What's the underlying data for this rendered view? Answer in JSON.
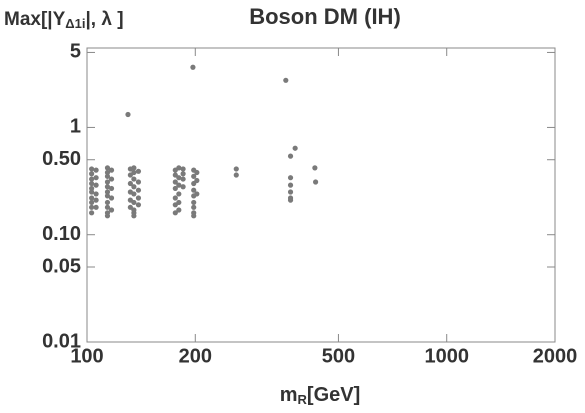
{
  "chart_data": {
    "type": "scatter",
    "title": "Boson DM (IH)",
    "x_label": [
      "m",
      "R",
      "[GeV]"
    ],
    "y_label": [
      "Max[|Y",
      "Δ1i",
      "|, λ ]"
    ],
    "xscale": "log",
    "yscale": "log",
    "xlim": [
      100,
      2000
    ],
    "ylim": [
      0.01,
      5.5
    ],
    "xticks": [
      100,
      200,
      500,
      1000,
      2000
    ],
    "yticks": [
      0.01,
      0.05,
      {
        "value": 0.1,
        "label": "0.10"
      },
      {
        "value": 0.5,
        "label": "0.50"
      },
      1,
      5
    ],
    "series": [
      {
        "color": "#7a7a7a",
        "x": [
          103,
          103,
          103,
          103,
          103,
          103,
          103,
          103,
          103,
          103,
          106,
          106,
          106,
          106,
          106,
          106,
          114,
          114,
          114,
          114,
          114,
          114,
          114,
          114,
          114,
          114,
          114,
          117,
          117,
          117,
          117,
          117,
          132,
          132,
          132,
          132,
          132,
          132,
          135,
          135,
          135,
          135,
          135,
          135,
          135,
          135,
          135,
          139,
          139,
          139,
          139,
          139,
          176,
          176,
          176,
          176,
          176,
          176,
          176,
          180,
          180,
          180,
          180,
          180,
          180,
          185,
          185,
          185,
          185,
          198,
          198,
          198,
          198,
          198,
          198,
          198,
          198,
          198,
          202,
          202,
          202,
          197,
          357,
          130,
          379,
          368,
          430,
          432,
          260,
          260,
          368,
          368,
          368,
          368,
          368
        ],
        "values": [
          0.41,
          0.37,
          0.33,
          0.3,
          0.27,
          0.25,
          0.22,
          0.2,
          0.18,
          0.16,
          0.4,
          0.34,
          0.29,
          0.24,
          0.21,
          0.18,
          0.42,
          0.38,
          0.35,
          0.31,
          0.28,
          0.25,
          0.23,
          0.2,
          0.18,
          0.16,
          0.15,
          0.4,
          0.33,
          0.27,
          0.22,
          0.17,
          0.41,
          0.36,
          0.3,
          0.25,
          0.21,
          0.18,
          0.42,
          0.38,
          0.33,
          0.28,
          0.24,
          0.2,
          0.17,
          0.16,
          0.15,
          0.39,
          0.31,
          0.26,
          0.22,
          0.19,
          0.4,
          0.36,
          0.31,
          0.27,
          0.22,
          0.19,
          0.16,
          0.42,
          0.34,
          0.29,
          0.24,
          0.2,
          0.17,
          0.41,
          0.37,
          0.33,
          0.28,
          0.4,
          0.35,
          0.3,
          0.26,
          0.23,
          0.2,
          0.18,
          0.16,
          0.15,
          0.38,
          0.32,
          0.24,
          3.64,
          2.75,
          1.32,
          0.64,
          0.54,
          0.42,
          0.31,
          0.41,
          0.36,
          0.34,
          0.29,
          0.25,
          0.22,
          0.21
        ]
      }
    ]
  }
}
